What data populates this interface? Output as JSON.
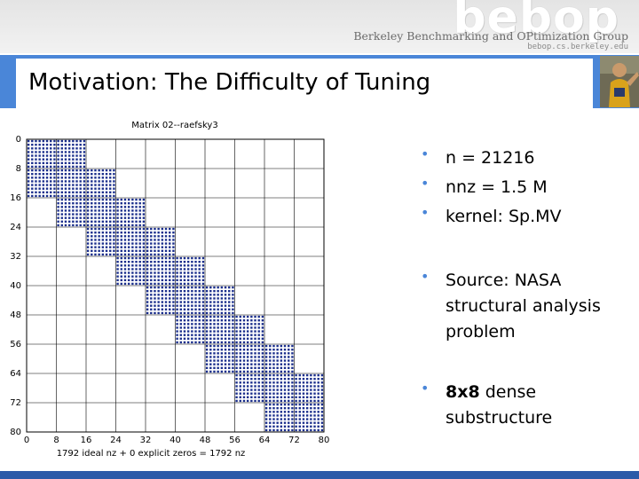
{
  "header": {
    "logo_word": "bebop",
    "logo_subtitle": "Berkeley Benchmarking and OPtimization Group",
    "logo_url": "bebop.cs.berkeley.edu"
  },
  "slide": {
    "title": "Motivation: The Difficulty of Tuning"
  },
  "bullets": [
    {
      "text": "n = 21216"
    },
    {
      "text": "nnz = 1.5 M"
    },
    {
      "text": "kernel: Sp.MV"
    },
    {
      "text": "Source: NASA structural analysis problem"
    },
    {
      "bold": "8x8",
      "text": " dense substructure"
    }
  ],
  "colors": {
    "accent": "#4a86d8",
    "footer": "#2c5aa8",
    "dots": "#1a2e8c"
  },
  "chart_data": {
    "type": "heatmap",
    "title": "Matrix 02--raefsky3",
    "xlabel": "1792 ideal nz + 0 explicit zeros = 1792 nz",
    "ylabel": "",
    "xlim": [
      0,
      80
    ],
    "ylim": [
      0,
      80
    ],
    "y_inverted": true,
    "x_ticks": [
      0,
      8,
      16,
      24,
      32,
      40,
      48,
      56,
      64,
      72,
      80
    ],
    "y_ticks": [
      0,
      8,
      16,
      24,
      32,
      40,
      48,
      56,
      64,
      72,
      80
    ],
    "grid": true,
    "block_size": 8,
    "blocks": [
      {
        "row": 0,
        "cols": [
          0,
          8
        ]
      },
      {
        "row": 8,
        "cols": [
          0,
          8,
          16
        ]
      },
      {
        "row": 16,
        "cols": [
          8,
          16,
          24
        ]
      },
      {
        "row": 24,
        "cols": [
          16,
          24,
          32
        ]
      },
      {
        "row": 32,
        "cols": [
          24,
          32,
          40
        ]
      },
      {
        "row": 40,
        "cols": [
          32,
          40,
          48
        ]
      },
      {
        "row": 48,
        "cols": [
          40,
          48,
          56
        ]
      },
      {
        "row": 56,
        "cols": [
          48,
          56,
          64
        ]
      },
      {
        "row": 64,
        "cols": [
          56,
          64,
          72
        ]
      },
      {
        "row": 72,
        "cols": [
          64,
          72
        ]
      }
    ]
  }
}
